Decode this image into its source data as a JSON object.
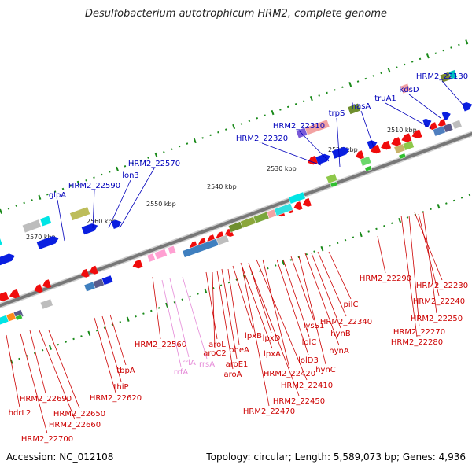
{
  "title": "Desulfobacterium autotrophicum HRM2, complete genome",
  "footer": {
    "accession": "Accession: NC_012108",
    "topology": "Topology: circular; Length: 5,589,073 bp; Genes: 4,936"
  },
  "colors": {
    "top_labels": "#0000bb",
    "bottom_labels": "#cc0000",
    "rna_labels": "#e58ad8",
    "backbone": "#777777",
    "tick": "#1a8a1a"
  },
  "kbp_labels": [
    "2510 kbp",
    "2520 kbp",
    "2530 kbp",
    "2540 kbp",
    "2550 kbp",
    "2560 kbp",
    "2570 kbp"
  ],
  "top_labels": [
    "HRM2_22130",
    "kdsD",
    "truA1",
    "hasA",
    "trpS",
    "HRM2_22310",
    "HRM2_22320",
    "HRM2_22570",
    "lon3",
    "HRM2_22590",
    "glpA"
  ],
  "bottom_labels": [
    "HRM2_22290",
    "HRM2_22230",
    "HRM2_22240",
    "HRM2_22250",
    "HRM2_22270",
    "HRM2_22280",
    "pilC",
    "HRM2_22340",
    "hynB",
    "hynA",
    "lysS1",
    "hynC",
    "lolC",
    "lolD3",
    "HRM2_22420",
    "HRM2_22410",
    "lpxD",
    "lpxA",
    "lpxB",
    "HRM2_22450",
    "HRM2_22470",
    "pheA",
    "aroE1",
    "aroA",
    "aroC2",
    "aroL",
    "HRM2_22560",
    "tbpA",
    "thiP",
    "HRM2_22620",
    "HRM2_22650",
    "HRM2_22660",
    "HRM2_22690",
    "HRM2_22700",
    "hdrL2"
  ],
  "rna_labels": [
    "rrlA",
    "rrfA",
    "rrsA"
  ]
}
